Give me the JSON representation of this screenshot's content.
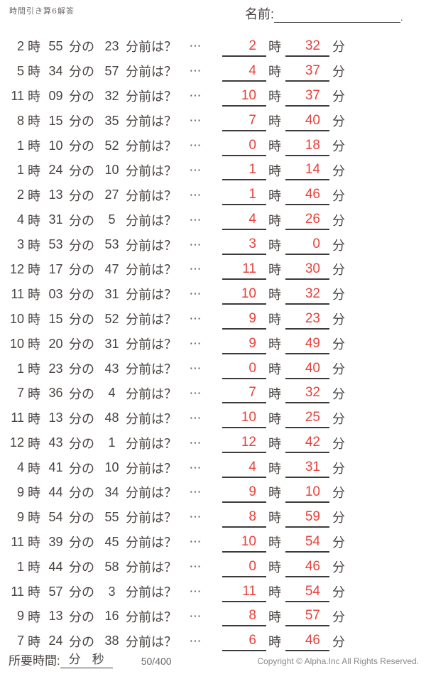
{
  "header": {
    "title": "時間引き算6解答",
    "name_label": "名前:",
    "name_line_period": "."
  },
  "labels": {
    "hour_unit": "時",
    "minute_of": "分の",
    "minutes_before_q": "分前は？",
    "ellipsis": "⋯",
    "minute_unit": "分"
  },
  "problems": [
    {
      "hour": "2",
      "minute": "55",
      "subtract": "23",
      "ans_hour": "2",
      "ans_minute": "32"
    },
    {
      "hour": "5",
      "minute": "34",
      "subtract": "57",
      "ans_hour": "4",
      "ans_minute": "37"
    },
    {
      "hour": "11",
      "minute": "09",
      "subtract": "32",
      "ans_hour": "10",
      "ans_minute": "37"
    },
    {
      "hour": "8",
      "minute": "15",
      "subtract": "35",
      "ans_hour": "7",
      "ans_minute": "40"
    },
    {
      "hour": "1",
      "minute": "10",
      "subtract": "52",
      "ans_hour": "0",
      "ans_minute": "18"
    },
    {
      "hour": "1",
      "minute": "24",
      "subtract": "10",
      "ans_hour": "1",
      "ans_minute": "14"
    },
    {
      "hour": "2",
      "minute": "13",
      "subtract": "27",
      "ans_hour": "1",
      "ans_minute": "46"
    },
    {
      "hour": "4",
      "minute": "31",
      "subtract": "5",
      "ans_hour": "4",
      "ans_minute": "26"
    },
    {
      "hour": "3",
      "minute": "53",
      "subtract": "53",
      "ans_hour": "3",
      "ans_minute": "0"
    },
    {
      "hour": "12",
      "minute": "17",
      "subtract": "47",
      "ans_hour": "11",
      "ans_minute": "30"
    },
    {
      "hour": "11",
      "minute": "03",
      "subtract": "31",
      "ans_hour": "10",
      "ans_minute": "32"
    },
    {
      "hour": "10",
      "minute": "15",
      "subtract": "52",
      "ans_hour": "9",
      "ans_minute": "23"
    },
    {
      "hour": "10",
      "minute": "20",
      "subtract": "31",
      "ans_hour": "9",
      "ans_minute": "49"
    },
    {
      "hour": "1",
      "minute": "23",
      "subtract": "43",
      "ans_hour": "0",
      "ans_minute": "40"
    },
    {
      "hour": "7",
      "minute": "36",
      "subtract": "4",
      "ans_hour": "7",
      "ans_minute": "32"
    },
    {
      "hour": "11",
      "minute": "13",
      "subtract": "48",
      "ans_hour": "10",
      "ans_minute": "25"
    },
    {
      "hour": "12",
      "minute": "43",
      "subtract": "1",
      "ans_hour": "12",
      "ans_minute": "42"
    },
    {
      "hour": "4",
      "minute": "41",
      "subtract": "10",
      "ans_hour": "4",
      "ans_minute": "31"
    },
    {
      "hour": "9",
      "minute": "44",
      "subtract": "34",
      "ans_hour": "9",
      "ans_minute": "10"
    },
    {
      "hour": "9",
      "minute": "54",
      "subtract": "55",
      "ans_hour": "8",
      "ans_minute": "59"
    },
    {
      "hour": "11",
      "minute": "39",
      "subtract": "45",
      "ans_hour": "10",
      "ans_minute": "54"
    },
    {
      "hour": "1",
      "minute": "44",
      "subtract": "58",
      "ans_hour": "0",
      "ans_minute": "46"
    },
    {
      "hour": "11",
      "minute": "57",
      "subtract": "3",
      "ans_hour": "11",
      "ans_minute": "54"
    },
    {
      "hour": "9",
      "minute": "13",
      "subtract": "16",
      "ans_hour": "8",
      "ans_minute": "57"
    },
    {
      "hour": "7",
      "minute": "24",
      "subtract": "38",
      "ans_hour": "6",
      "ans_minute": "46"
    }
  ],
  "footer": {
    "required_time_label": "所要時間:",
    "minute_label": "分",
    "second_label": "秒",
    "page_count": "50/400",
    "copyright": "Copyright ©  Alpha.Inc All Rights Reserved."
  },
  "colors": {
    "answer_red": "#e9423c",
    "ink": "#4a4442",
    "line": "#3e3a39"
  }
}
